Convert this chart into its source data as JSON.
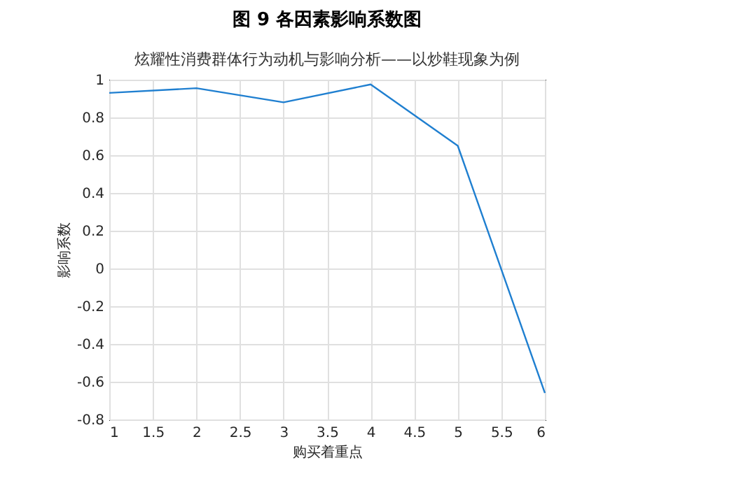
{
  "chart_data": {
    "type": "line",
    "title": "图 9 各因素影响系数图",
    "subtitle": "炫耀性消费群体行为动机与影响分析——以炒鞋现象为例",
    "xlabel": "购买着重点",
    "ylabel": "影响系数",
    "x": [
      1,
      2,
      3,
      4,
      5,
      6
    ],
    "series": [
      {
        "color": "#1f7fd0",
        "values": [
          0.93,
          0.955,
          0.88,
          0.975,
          0.65,
          -0.66
        ]
      }
    ],
    "xlim": [
      1,
      6
    ],
    "xticks": [
      1,
      1.5,
      2,
      2.5,
      3,
      3.5,
      4,
      4.5,
      5,
      5.5,
      6
    ],
    "ylim": [
      -0.8,
      1
    ],
    "yticks": [
      -0.8,
      -0.6,
      -0.4,
      -0.2,
      0,
      0.2,
      0.4,
      0.6,
      0.8,
      1
    ],
    "grid": true,
    "marker": "none",
    "line_style": "solid"
  }
}
